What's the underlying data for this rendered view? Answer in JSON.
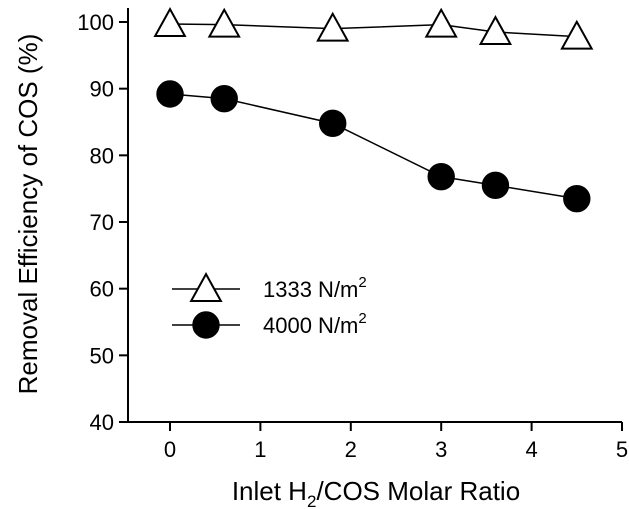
{
  "chart_data": {
    "type": "line",
    "title": "",
    "xlabel": {
      "prefix": "Inlet H",
      "subscript": "2",
      "suffix": "/COS Molar Ratio"
    },
    "ylabel": "Removal Efficiency of COS (%)",
    "xlim": [
      0,
      5
    ],
    "ylim": [
      40,
      100
    ],
    "x_ticks": [
      "0",
      "1",
      "2",
      "3",
      "4",
      "5"
    ],
    "y_ticks": [
      "40",
      "50",
      "60",
      "70",
      "80",
      "90",
      "100"
    ],
    "grid": false,
    "legend_position": "center-left",
    "series": [
      {
        "name": "1333 N/m",
        "name_superscript": "2",
        "marker": "open-triangle",
        "color": "#000000",
        "x": [
          0,
          0.6,
          1.8,
          3.0,
          3.6,
          4.5
        ],
        "y": [
          99.7,
          99.6,
          99.0,
          99.6,
          98.5,
          97.8
        ]
      },
      {
        "name": "4000 N/m",
        "name_superscript": "2",
        "marker": "filled-circle",
        "color": "#000000",
        "x": [
          0,
          0.6,
          1.8,
          3.0,
          3.6,
          4.5
        ],
        "y": [
          89.2,
          88.5,
          84.8,
          76.8,
          75.5,
          73.5
        ]
      }
    ]
  }
}
